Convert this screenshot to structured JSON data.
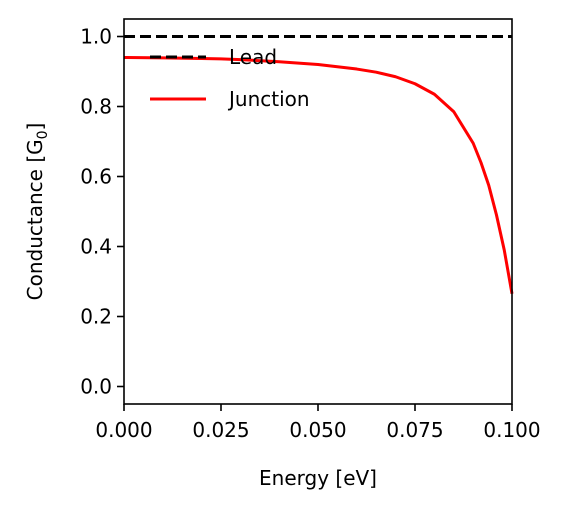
{
  "chart_data": {
    "type": "line",
    "xlabel": "Energy [eV]",
    "ylabel_main": "Conductance [G",
    "ylabel_sub": "0",
    "ylabel_end": "]",
    "xlim": [
      0.0,
      0.1
    ],
    "ylim": [
      -0.05,
      1.05
    ],
    "xticks": [
      0.0,
      0.025,
      0.05,
      0.075,
      0.1
    ],
    "xtick_labels": [
      "0.000",
      "0.025",
      "0.050",
      "0.075",
      "0.100"
    ],
    "yticks": [
      0.0,
      0.2,
      0.4,
      0.6,
      0.8,
      1.0
    ],
    "ytick_labels": [
      "0.0",
      "0.2",
      "0.4",
      "0.6",
      "0.8",
      "1.0"
    ],
    "grid": false,
    "legend_position": "top-left",
    "series": [
      {
        "name": "Lead",
        "color": "#000000",
        "style": "dashed",
        "x": [
          0.0,
          0.1
        ],
        "y": [
          1.0,
          1.0
        ]
      },
      {
        "name": "Junction",
        "color": "#ff0000",
        "style": "solid",
        "x": [
          0.0,
          0.01,
          0.02,
          0.025,
          0.03,
          0.04,
          0.05,
          0.06,
          0.065,
          0.07,
          0.075,
          0.08,
          0.085,
          0.09,
          0.092,
          0.094,
          0.096,
          0.098,
          0.1
        ],
        "y": [
          0.94,
          0.939,
          0.937,
          0.936,
          0.934,
          0.928,
          0.92,
          0.907,
          0.898,
          0.885,
          0.865,
          0.835,
          0.785,
          0.695,
          0.64,
          0.575,
          0.49,
          0.39,
          0.265
        ]
      }
    ]
  }
}
